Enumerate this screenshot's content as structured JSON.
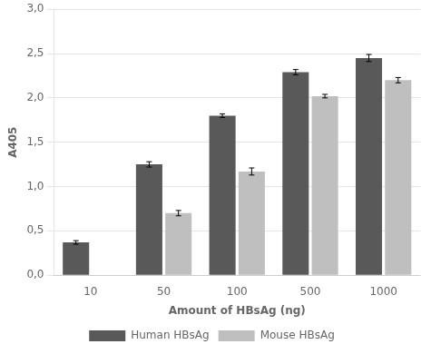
{
  "chart_data": {
    "type": "bar",
    "xlabel": "Amount of HBsAg (ng)",
    "ylabel": "A405",
    "categories": [
      "10",
      "50",
      "100",
      "500",
      "1000"
    ],
    "series": [
      {
        "name": "Human HBsAg",
        "color": "#595959",
        "values": [
          0.37,
          1.25,
          1.8,
          2.29,
          2.45
        ],
        "errors": [
          0.02,
          0.03,
          0.02,
          0.03,
          0.04
        ]
      },
      {
        "name": "Mouse HBsAg",
        "color": "#bfbfbf",
        "values": [
          null,
          0.7,
          1.17,
          2.02,
          2.2
        ],
        "errors": [
          null,
          0.03,
          0.04,
          0.02,
          0.03
        ]
      }
    ],
    "ylim": [
      0,
      3.0
    ],
    "yticks": [
      {
        "value": 0.0,
        "label": "0,0"
      },
      {
        "value": 0.5,
        "label": "0,5"
      },
      {
        "value": 1.0,
        "label": "1,0"
      },
      {
        "value": 1.5,
        "label": "1,5"
      },
      {
        "value": 2.0,
        "label": "2,0"
      },
      {
        "value": 2.5,
        "label": "2,5"
      },
      {
        "value": 3.0,
        "label": "3,0"
      }
    ],
    "grid": "y",
    "legend": "bottom"
  }
}
